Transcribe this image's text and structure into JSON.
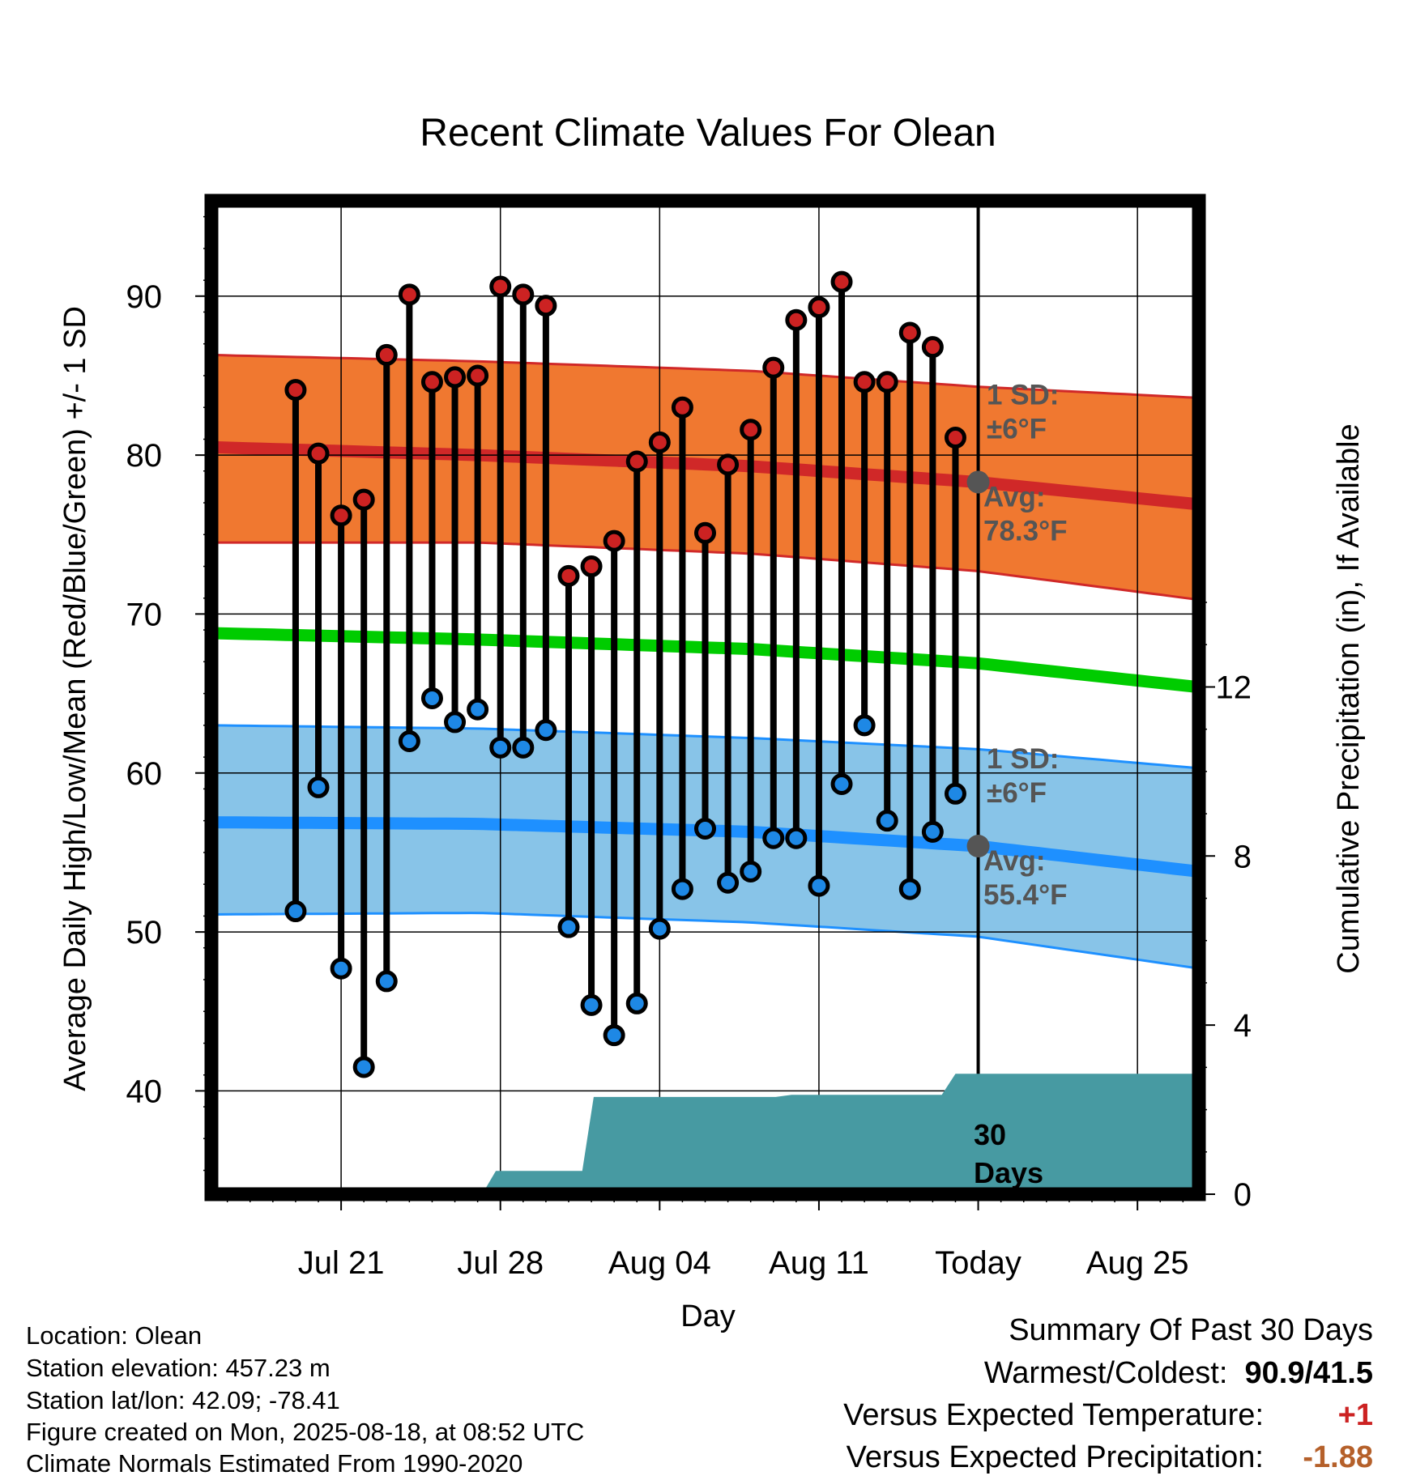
{
  "chart_data": {
    "type": "line",
    "title": "Recent Climate Values For Olean",
    "xlabel": "Day",
    "ylabel": "Average Daily High/Low/Mean (Red/Blue/Green) +/- 1 SD",
    "y2label": "Cumulative Precipitation (in), If Available",
    "ylim": [
      33.5,
      96
    ],
    "y2lim": [
      0,
      23.5
    ],
    "yticks": [
      40,
      50,
      60,
      70,
      80,
      90
    ],
    "y2ticks": [
      0,
      4,
      8,
      12
    ],
    "xlim_days": [
      -33.7,
      9.7
    ],
    "xtick_labels": [
      {
        "label": "Jul 21",
        "day": -28
      },
      {
        "label": "Jul 28",
        "day": -21
      },
      {
        "label": "Aug 04",
        "day": -14
      },
      {
        "label": "Aug 11",
        "day": -7
      },
      {
        "label": "Today",
        "day": 0
      },
      {
        "label": "Aug 25",
        "day": 7
      }
    ],
    "observed": {
      "day": [
        -30,
        -29,
        -28,
        -27,
        -26,
        -25,
        -24,
        -23,
        -22,
        -21,
        -20,
        -19,
        -18,
        -17,
        -16,
        -15,
        -14,
        -13,
        -12,
        -11,
        -10,
        -9,
        -8,
        -7,
        -6,
        -5,
        -4,
        -3,
        -2,
        -1
      ],
      "high": [
        84.1,
        80.1,
        76.2,
        77.2,
        86.3,
        90.1,
        84.6,
        84.9,
        85.0,
        90.6,
        90.1,
        89.4,
        72.4,
        73.0,
        74.6,
        79.6,
        80.8,
        83.0,
        75.1,
        79.4,
        81.6,
        85.5,
        88.5,
        89.3,
        90.9,
        84.6,
        84.6,
        87.7,
        86.8,
        81.1
      ],
      "low": [
        51.3,
        59.1,
        47.7,
        41.5,
        46.9,
        62.0,
        64.7,
        63.2,
        64.0,
        61.6,
        61.6,
        62.7,
        50.3,
        45.4,
        43.5,
        45.5,
        50.2,
        52.7,
        56.5,
        53.1,
        53.8,
        55.9,
        55.9,
        52.9,
        59.3,
        63.0,
        57.0,
        52.7,
        56.3,
        58.7
      ]
    },
    "normals": {
      "day": [
        -33.7,
        -22,
        -10,
        0,
        9.7
      ],
      "high_mean": [
        80.5,
        80.0,
        79.3,
        78.3,
        76.9
      ],
      "high_upper": [
        86.3,
        85.9,
        85.3,
        84.3,
        83.6
      ],
      "high_lower": [
        74.5,
        74.5,
        73.8,
        72.7,
        70.9
      ],
      "mean": [
        68.8,
        68.4,
        67.8,
        66.9,
        65.4
      ],
      "low_mean": [
        56.9,
        56.8,
        56.3,
        55.4,
        53.8
      ],
      "low_upper": [
        63.0,
        62.8,
        62.2,
        61.5,
        60.3
      ],
      "low_lower": [
        51.1,
        51.2,
        50.6,
        49.7,
        47.7
      ]
    },
    "precipitation_cumulative": {
      "day": [
        -33.7,
        -21.8,
        -21.2,
        -17.4,
        -16.9,
        -8.9,
        -8.2,
        -1.6,
        -1.0,
        9.7
      ],
      "value": [
        0,
        0,
        0.55,
        0.55,
        2.3,
        2.3,
        2.35,
        2.35,
        2.85,
        2.85
      ]
    },
    "today_markers": [
      {
        "label_top": "1 SD:",
        "label_bottom": "±6°F",
        "avg_label": "Avg:",
        "avg_value": "78.3°F",
        "value": 78.3
      },
      {
        "label_top": "1 SD:",
        "label_bottom": "±6°F",
        "avg_label": "Avg:",
        "avg_value": "55.4°F",
        "value": 55.4
      }
    ],
    "days_label": [
      "30",
      "Days"
    ],
    "colors": {
      "high_band": "#f07830",
      "high_line": "#d02828",
      "low_band": "#88c4e8",
      "low_line": "#1e90ff",
      "mean_line": "#00cc00",
      "precip": "#479aa2",
      "high_marker": "#cc2222",
      "low_marker": "#1e88e5",
      "annotation": "#555555"
    }
  },
  "info": {
    "location": "Location: Olean",
    "elevation": "Station elevation: 457.23 m",
    "latlon": "Station lat/lon: 42.09; -78.41",
    "created": "Figure created on Mon, 2025-08-18, at 08:52 UTC",
    "normals": "Climate Normals Estimated From 1990-2020"
  },
  "summary": {
    "title": "Summary Of Past 30 Days",
    "warmest_label": "Warmest/Coldest:",
    "warmest_value": "90.9/41.5",
    "temp_label": "Versus Expected Temperature:",
    "temp_value": "+1",
    "temp_color": "#cc2222",
    "precip_label": "Versus Expected Precipitation:",
    "precip_value": "-1.88",
    "precip_color": "#b5602a"
  }
}
